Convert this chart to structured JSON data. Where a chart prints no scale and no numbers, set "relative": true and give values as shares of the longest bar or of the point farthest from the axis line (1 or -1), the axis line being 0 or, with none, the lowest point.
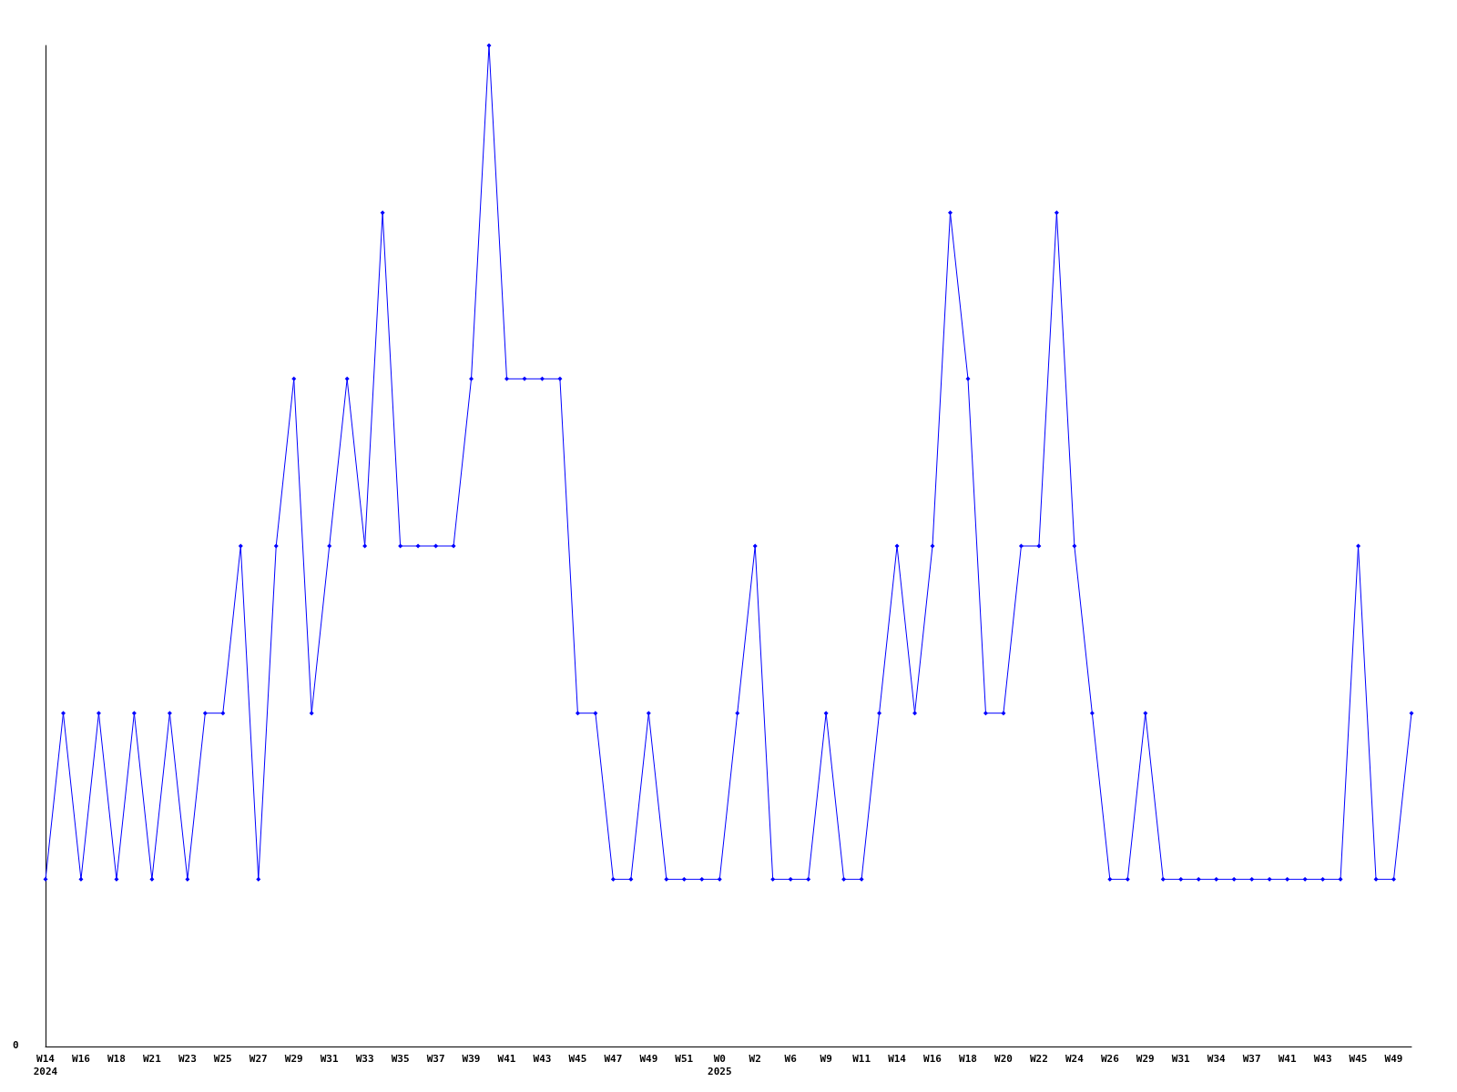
{
  "chart_data": {
    "type": "line",
    "relative": true,
    "grid": false,
    "marker": "diamond",
    "line_style": "solid",
    "annotations": [
      "0"
    ],
    "categories": [
      "W14\n2024",
      null,
      "W16",
      null,
      "W18",
      null,
      "W21",
      null,
      "W23",
      null,
      "W25",
      null,
      "W27",
      null,
      "W29",
      null,
      "W31",
      null,
      "W33",
      null,
      "W35",
      null,
      "W37",
      null,
      "W39",
      null,
      "W41",
      null,
      "W43",
      null,
      "W45",
      null,
      "W47",
      null,
      "W49",
      null,
      "W51",
      null,
      "W0\n2025",
      null,
      "W2",
      null,
      "W6",
      null,
      "W9",
      null,
      "W11",
      null,
      "W14",
      null,
      "W16",
      null,
      "W18",
      null,
      "W20",
      null,
      "W22",
      null,
      "W24",
      null,
      "W26",
      null,
      "W29",
      null,
      "W31",
      null,
      "W34",
      null,
      "W37",
      null,
      "W41",
      null,
      "W43",
      null,
      "W45",
      null,
      "W49",
      null
    ],
    "series": [
      {
        "color": "#0000ff",
        "values": [
          0.167,
          0.333,
          0.167,
          0.333,
          0.167,
          0.333,
          0.167,
          0.333,
          0.167,
          0.333,
          0.333,
          0.5,
          0.167,
          0.5,
          0.667,
          0.333,
          0.5,
          0.667,
          0.5,
          0.833,
          0.5,
          0.5,
          0.5,
          0.5,
          0.667,
          1,
          0.667,
          0.667,
          0.667,
          0.667,
          0.333,
          0.333,
          0.167,
          0.167,
          0.333,
          0.167,
          0.167,
          0.167,
          0.167,
          0.333,
          0.5,
          0.167,
          0.167,
          0.167,
          0.333,
          0.167,
          0.167,
          0.333,
          0.5,
          0.333,
          0.5,
          0.833,
          0.667,
          0.333,
          0.333,
          0.5,
          0.5,
          0.833,
          0.5,
          0.333,
          0.167,
          0.167,
          0.333,
          0.167,
          0.167,
          0.167,
          0.167,
          0.167,
          0.167,
          0.167,
          0.167,
          0.167,
          0.167,
          0.167,
          0.5,
          0.167,
          0.167,
          0.333
        ]
      }
    ]
  }
}
